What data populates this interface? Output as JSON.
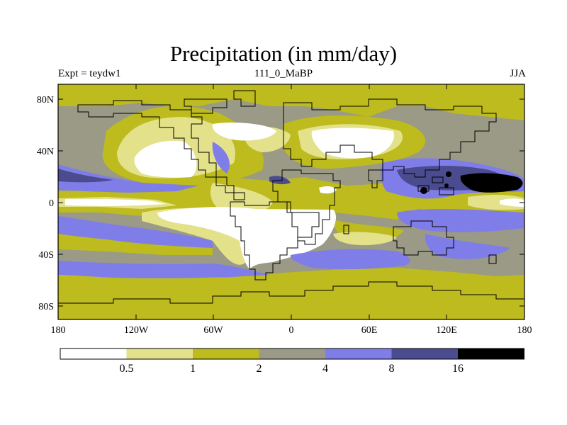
{
  "title": "Precipitation (in mm/day)",
  "subtitle": {
    "left": "Expt = teydw1",
    "center": "111_0_MaBP",
    "right": "JJA"
  },
  "axes": {
    "y_ticks": [
      "80N",
      "40N",
      "0",
      "40S",
      "80S"
    ],
    "x_ticks": [
      "180",
      "120W",
      "60W",
      "0",
      "60E",
      "120E",
      "180"
    ]
  },
  "colorbar": {
    "labels": [
      "0.5",
      "1",
      "2",
      "4",
      "8",
      "16"
    ],
    "colors": [
      "#ffffff",
      "#e3e18a",
      "#bdbb1d",
      "#9a9a86",
      "#7f7de8",
      "#4b4b8f",
      "#000000"
    ]
  },
  "map_colors": {
    "white": "#ffffff",
    "pale": "#e3e18a",
    "olive": "#bdbb1d",
    "gray": "#9a9a86",
    "blue": "#7f7de8",
    "navy": "#4b4b8f",
    "black": "#000000"
  }
}
